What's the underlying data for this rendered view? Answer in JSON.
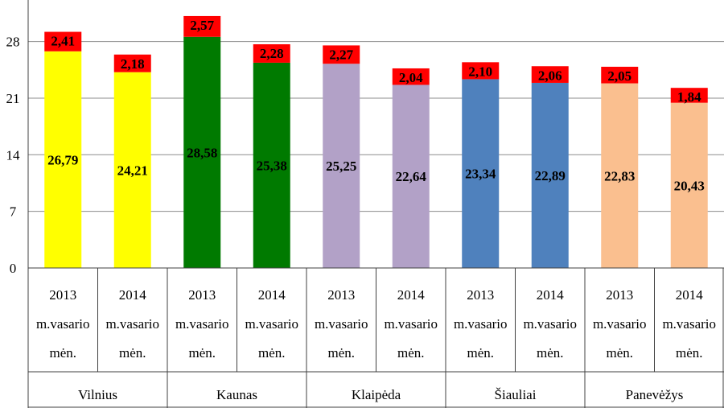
{
  "chart_data": {
    "type": "bar",
    "stacked": true,
    "ylim": [
      0,
      31
    ],
    "y_ticks": [
      0,
      7,
      14,
      21,
      28
    ],
    "y_tick_labels": [
      "0",
      "7",
      "14",
      "21",
      "28"
    ],
    "grid": true,
    "groups": [
      "Vilnius",
      "Kaunas",
      "Klaipėda",
      "Šiauliai",
      "Panevėžys"
    ],
    "categories": [
      {
        "group": "Vilnius",
        "line1": "2013",
        "line2": "m.vasario",
        "line3": "mėn."
      },
      {
        "group": "Vilnius",
        "line1": "2014",
        "line2": "m.vasario",
        "line3": "mėn."
      },
      {
        "group": "Kaunas",
        "line1": "2013",
        "line2": "m.vasario",
        "line3": "mėn."
      },
      {
        "group": "Kaunas",
        "line1": "2014",
        "line2": "m.vasario",
        "line3": "mėn."
      },
      {
        "group": "Klaipėda",
        "line1": "2013",
        "line2": "m.vasario",
        "line3": "mėn."
      },
      {
        "group": "Klaipėda",
        "line1": "2014",
        "line2": "m.vasario",
        "line3": "mėn."
      },
      {
        "group": "Šiauliai",
        "line1": "2013",
        "line2": "m.vasario",
        "line3": "mėn."
      },
      {
        "group": "Šiauliai",
        "line1": "2014",
        "line2": "m.vasario",
        "line3": "mėn."
      },
      {
        "group": "Panevėžys",
        "line1": "2013",
        "line2": "m.vasario",
        "line3": "mėn."
      },
      {
        "group": "Panevėžys",
        "line1": "2014",
        "line2": "m.vasario",
        "line3": "mėn."
      }
    ],
    "series": [
      {
        "values": [
          26.79,
          24.21,
          28.58,
          25.38,
          25.25,
          22.64,
          23.34,
          22.89,
          22.83,
          20.43
        ],
        "labels": [
          "26,79",
          "24,21",
          "28,58",
          "25,38",
          "25,25",
          "22,64",
          "23,34",
          "22,89",
          "22,83",
          "20,43"
        ],
        "colors": [
          "#ffff00",
          "#ffff00",
          "#007a00",
          "#007a00",
          "#b2a1c7",
          "#b2a1c7",
          "#4f81bd",
          "#4f81bd",
          "#fabf8f",
          "#fabf8f"
        ]
      },
      {
        "values": [
          2.41,
          2.18,
          2.57,
          2.28,
          2.27,
          2.04,
          2.1,
          2.06,
          2.05,
          1.84
        ],
        "labels": [
          "2,41",
          "2,18",
          "2,57",
          "2,28",
          "2,27",
          "2,04",
          "2,10",
          "2,06",
          "2,05",
          "1,84"
        ],
        "colors": [
          "#ff0000",
          "#ff0000",
          "#ff0000",
          "#ff0000",
          "#ff0000",
          "#ff0000",
          "#ff0000",
          "#ff0000",
          "#ff0000",
          "#ff0000"
        ]
      }
    ]
  }
}
